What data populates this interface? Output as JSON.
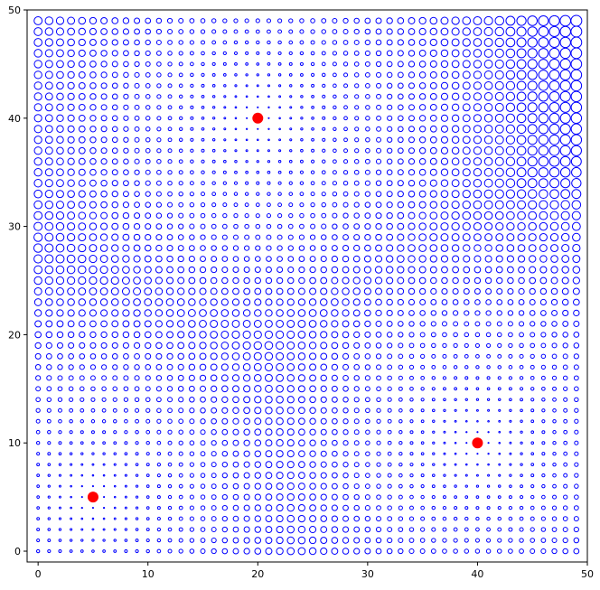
{
  "chart_data": {
    "type": "scatter",
    "title": "",
    "xlabel": "",
    "ylabel": "",
    "xlim": [
      -1,
      50
    ],
    "ylim": [
      -1,
      50
    ],
    "grid": false,
    "x_ticks": [
      0,
      10,
      20,
      30,
      40,
      50
    ],
    "y_ticks": [
      0,
      10,
      20,
      30,
      40,
      50
    ],
    "x_tick_labels": [
      "0",
      "10",
      "20",
      "30",
      "40",
      "50"
    ],
    "y_tick_labels": [
      "0",
      "10",
      "20",
      "30",
      "40",
      "50"
    ],
    "series": [
      {
        "marker": "hollow-circle",
        "color": "#0000ff",
        "grid_x_range": [
          0,
          49
        ],
        "grid_y_range": [
          0,
          49
        ],
        "grid_step": 1,
        "size_rule": "marker size grows with distance from the nearest red point"
      },
      {
        "marker": "filled-circle",
        "color": "#ff0000",
        "points": [
          {
            "x": 5,
            "y": 5
          },
          {
            "x": 20,
            "y": 40
          },
          {
            "x": 40,
            "y": 10
          }
        ]
      }
    ]
  }
}
